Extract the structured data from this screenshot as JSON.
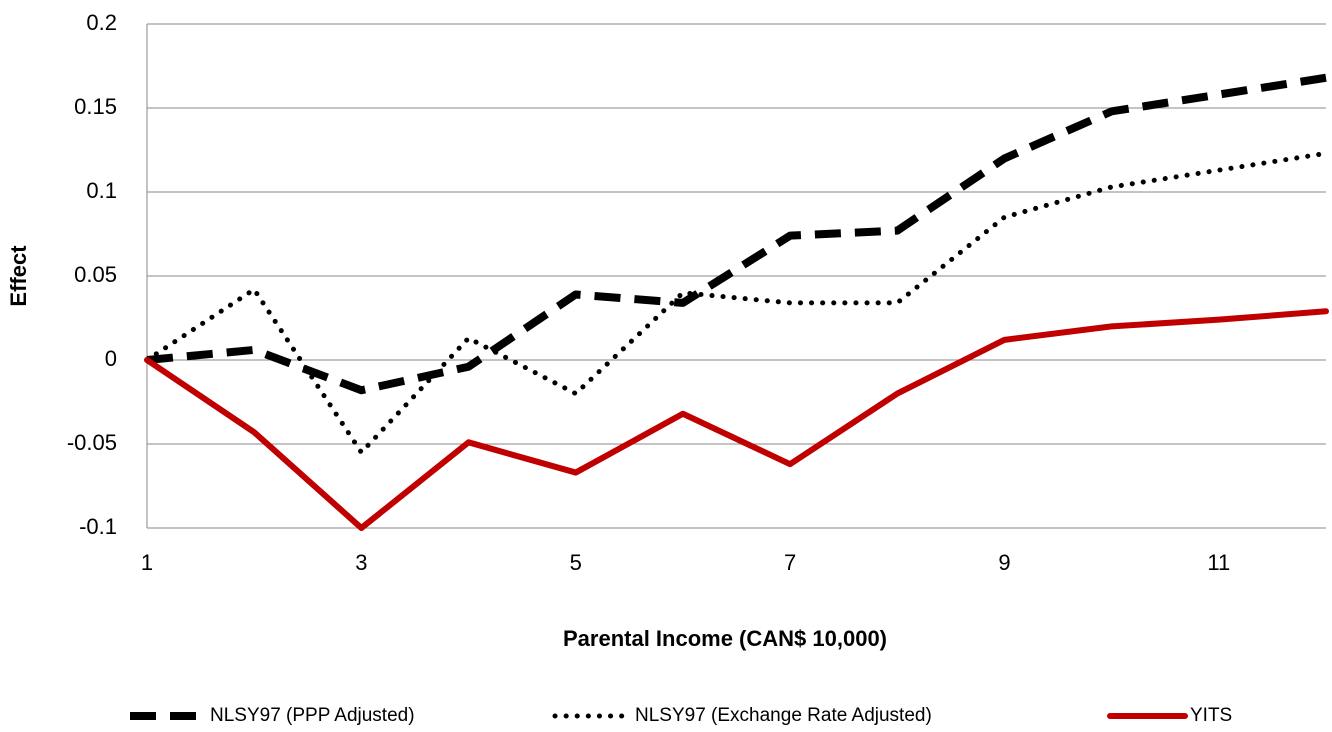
{
  "chart_data": {
    "type": "line",
    "x_label": "Parental Income (CAN$ 10,000)",
    "y_label": "Effect",
    "x": [
      1,
      2,
      3,
      4,
      5,
      6,
      7,
      8,
      9,
      10,
      11,
      12
    ],
    "series": [
      {
        "name": "NLSY97 (PPP Adjusted)",
        "color": "#000000",
        "dash": "dash",
        "values": [
          0,
          0.006,
          -0.018,
          -0.004,
          0.039,
          0.034,
          0.074,
          0.077,
          0.12,
          0.148,
          0.158,
          0.168
        ]
      },
      {
        "name": "NLSY97 (Exchange Rate Adjusted)",
        "color": "#000000",
        "dash": "dot",
        "values": [
          0,
          0.042,
          -0.055,
          0.013,
          -0.02,
          0.04,
          0.034,
          0.034,
          0.085,
          0.103,
          0.113,
          0.123
        ]
      },
      {
        "name": "YITS",
        "color": "#c00000",
        "dash": "solid",
        "values": [
          0,
          -0.043,
          -0.1,
          -0.049,
          -0.067,
          -0.032,
          -0.062,
          -0.02,
          0.012,
          0.02,
          0.024,
          0.029
        ]
      }
    ],
    "xlim": [
      1,
      12
    ],
    "xticks": [
      1,
      3,
      5,
      7,
      9,
      11
    ],
    "ylim": [
      -0.1,
      0.2
    ],
    "yticks": [
      -0.1,
      -0.05,
      0,
      0.05,
      0.1,
      0.15,
      0.2
    ],
    "grid": true,
    "legend": "bottom"
  }
}
